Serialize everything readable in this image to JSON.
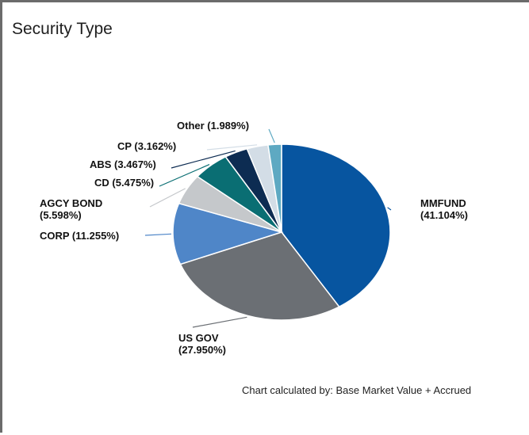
{
  "title": "Security Type",
  "footnote": "Chart calculated by: Base Market Value + Accrued",
  "chart_data": {
    "type": "pie",
    "slices": [
      {
        "name": "MMFUND",
        "label_line1": "MMFUND",
        "label_line2": "(41.104%)",
        "value": 41.104,
        "color": "#0755a0"
      },
      {
        "name": "US GOV",
        "label_line1": "US GOV",
        "label_line2": "(27.950%)",
        "value": 27.95,
        "color": "#6b6f74"
      },
      {
        "name": "CORP",
        "label_line1": "CORP (11.255%)",
        "label_line2": "",
        "value": 11.255,
        "color": "#4f86c8"
      },
      {
        "name": "AGCY BOND",
        "label_line1": "AGCY BOND",
        "label_line2": "(5.598%)",
        "value": 5.598,
        "color": "#c5c8cb"
      },
      {
        "name": "CD",
        "label_line1": "CD (5.475%)",
        "label_line2": "",
        "value": 5.475,
        "color": "#0a6e73"
      },
      {
        "name": "ABS",
        "label_line1": "ABS (3.467%)",
        "label_line2": "",
        "value": 3.467,
        "color": "#0d2c52"
      },
      {
        "name": "CP",
        "label_line1": "CP (3.162%)",
        "label_line2": "",
        "value": 3.162,
        "color": "#d3dde6"
      },
      {
        "name": "Other",
        "label_line1": "Other (1.989%)",
        "label_line2": "",
        "value": 1.989,
        "color": "#5ea9c2"
      }
    ]
  }
}
